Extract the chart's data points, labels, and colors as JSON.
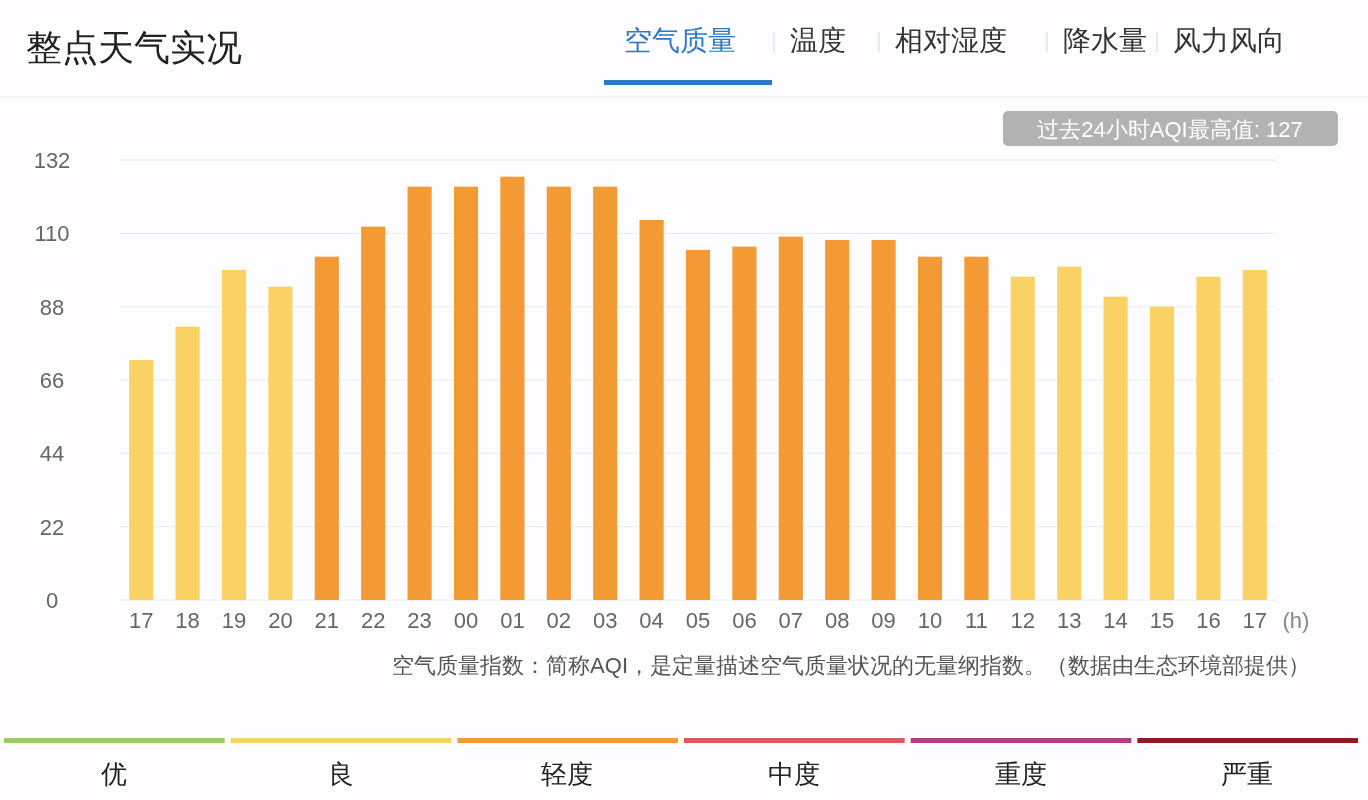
{
  "chart_data": {
    "type": "bar",
    "title": "整点天气实况",
    "xlabel": "(h)",
    "categories": [
      "17",
      "18",
      "19",
      "20",
      "21",
      "22",
      "23",
      "00",
      "01",
      "02",
      "03",
      "04",
      "05",
      "06",
      "07",
      "08",
      "09",
      "10",
      "11",
      "12",
      "13",
      "14",
      "15",
      "16",
      "17"
    ],
    "values": [
      72,
      82,
      99,
      94,
      103,
      112,
      124,
      124,
      127,
      124,
      124,
      114,
      105,
      106,
      109,
      108,
      108,
      103,
      103,
      97,
      100,
      91,
      88,
      97,
      99
    ],
    "colors": [
      "#fad264",
      "#fad264",
      "#fad264",
      "#fad264",
      "#f39a34",
      "#f39a34",
      "#f39a34",
      "#f39a34",
      "#f39a34",
      "#f39a34",
      "#f39a34",
      "#f39a34",
      "#f39a34",
      "#f39a34",
      "#f39a34",
      "#f39a34",
      "#f39a34",
      "#f39a34",
      "#f39a34",
      "#fad264",
      "#fad264",
      "#fad264",
      "#fad264",
      "#fad264",
      "#fad264"
    ],
    "ylim": [
      0,
      132
    ],
    "yticks": [
      0,
      22,
      44,
      66,
      88,
      110,
      132
    ],
    "grid": "y",
    "annotations": [
      "空气质量",
      "温度",
      "相对湿度",
      "降水量",
      "风力风向",
      "过去24小时AQI最高值: 127",
      "空气质量指数：简称AQI，是定量描述空气质量状况的无量纲指数。（数据由生态环境部提供）",
      "优",
      "良",
      "轻度",
      "中度",
      "重度",
      "严重"
    ]
  }
}
